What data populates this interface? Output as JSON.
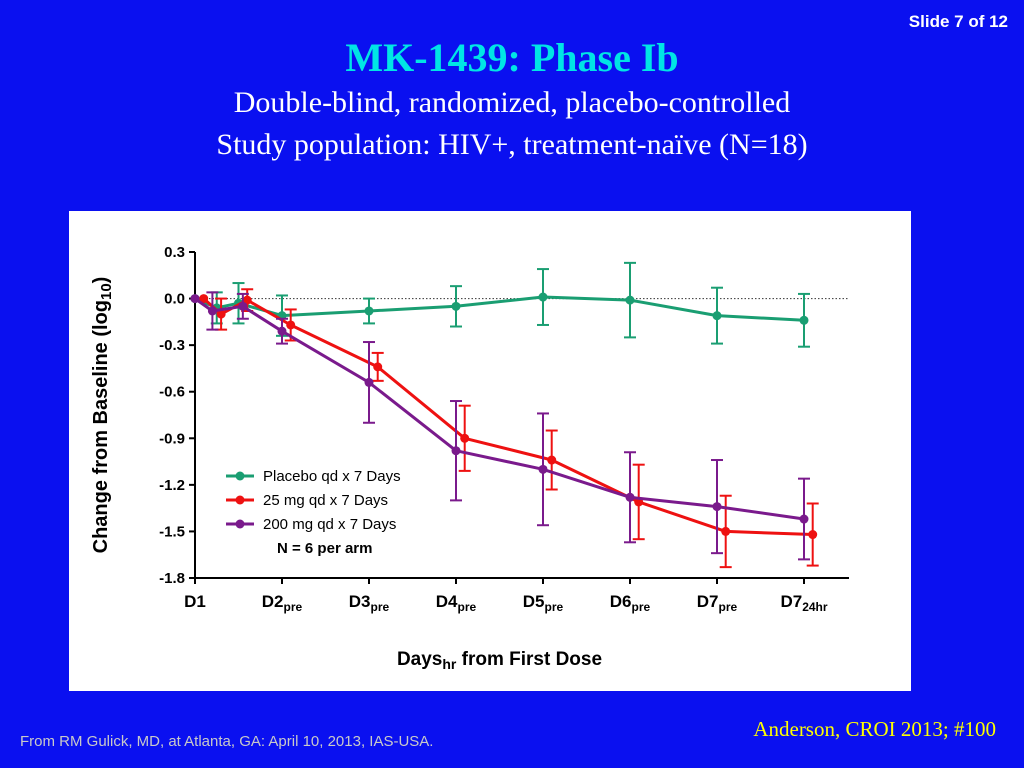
{
  "slide_number": "Slide 7 of 12",
  "title": "MK-1439:  Phase Ib",
  "subtitle_line1": "Double-blind, randomized, placebo-controlled",
  "subtitle_line2": "Study population: HIV+, treatment-naïve (N=18)",
  "source_note": "From RM Gulick, MD, at Atlanta, GA: April 10, 2013, IAS-USA.",
  "citation": "Anderson, CROI 2013; #100",
  "colors": {
    "background": "#0a10f0",
    "title": "#00e5e5",
    "citation": "#ffff00",
    "placebo": "#1a9e72",
    "mg25": "#ee1111",
    "mg200": "#7a1a8c"
  },
  "chart_data": {
    "type": "line",
    "ylabel": "Change from Baseline (log",
    "ylabel_sub": "10",
    "ylabel_end": ")",
    "xlabel": "Days",
    "xlabel_sub": "hr",
    "xlabel_end": " from First Dose",
    "ylim": [
      -1.8,
      0.3
    ],
    "yticks": [
      0.3,
      0.0,
      -0.3,
      -0.6,
      -0.9,
      -1.2,
      -1.5,
      -1.8
    ],
    "ytick_labels": [
      "0.3",
      "0.0",
      "-0.3",
      "-0.6",
      "-0.9",
      "-1.2",
      "-1.5",
      "-1.8"
    ],
    "reference_line": 0,
    "xlim": [
      0,
      7
    ],
    "xticks": [
      {
        "pos": 0,
        "main": "D1",
        "sub": ""
      },
      {
        "pos": 1,
        "main": "D2",
        "sub": "pre"
      },
      {
        "pos": 2,
        "main": "D3",
        "sub": "pre"
      },
      {
        "pos": 3,
        "main": "D4",
        "sub": "pre"
      },
      {
        "pos": 4,
        "main": "D5",
        "sub": "pre"
      },
      {
        "pos": 5,
        "main": "D6",
        "sub": "pre"
      },
      {
        "pos": 6,
        "main": "D7",
        "sub": "pre"
      },
      {
        "pos": 7,
        "main": "D7",
        "sub": "24hr"
      }
    ],
    "series": [
      {
        "name": "Placebo qd x 7 Days",
        "key": "placebo",
        "color": "#1a9e72",
        "points": [
          {
            "x": 0,
            "y": 0.0,
            "err": 0
          },
          {
            "x": 0.25,
            "y": -0.06,
            "err": 0.1
          },
          {
            "x": 0.5,
            "y": -0.03,
            "err": 0.13
          },
          {
            "x": 1,
            "y": -0.11,
            "err": 0.13
          },
          {
            "x": 2,
            "y": -0.08,
            "err": 0.08
          },
          {
            "x": 3,
            "y": -0.05,
            "err": 0.13
          },
          {
            "x": 4,
            "y": 0.01,
            "err": 0.18
          },
          {
            "x": 5,
            "y": -0.01,
            "err": 0.24
          },
          {
            "x": 6,
            "y": -0.11,
            "err": 0.18
          },
          {
            "x": 7,
            "y": -0.14,
            "err": 0.17
          }
        ]
      },
      {
        "name": "25 mg qd x 7 Days",
        "key": "mg25",
        "color": "#ee1111",
        "points": [
          {
            "x": 0.1,
            "y": 0.0,
            "err": 0
          },
          {
            "x": 0.3,
            "y": -0.1,
            "err": 0.1
          },
          {
            "x": 0.6,
            "y": -0.01,
            "err": 0.07
          },
          {
            "x": 1.1,
            "y": -0.17,
            "err": 0.1
          },
          {
            "x": 2.1,
            "y": -0.44,
            "err": 0.09
          },
          {
            "x": 3.1,
            "y": -0.9,
            "err": 0.21
          },
          {
            "x": 4.1,
            "y": -1.04,
            "err": 0.19
          },
          {
            "x": 5.1,
            "y": -1.31,
            "err": 0.24
          },
          {
            "x": 6.1,
            "y": -1.5,
            "err": 0.23
          },
          {
            "x": 7.1,
            "y": -1.52,
            "err": 0.2
          }
        ]
      },
      {
        "name": "200 mg qd x 7 Days",
        "key": "mg200",
        "color": "#7a1a8c",
        "points": [
          {
            "x": 0,
            "y": 0.0,
            "err": 0
          },
          {
            "x": 0.2,
            "y": -0.08,
            "err": 0.12
          },
          {
            "x": 0.55,
            "y": -0.05,
            "err": 0.08
          },
          {
            "x": 1,
            "y": -0.21,
            "err": 0.08
          },
          {
            "x": 2,
            "y": -0.54,
            "err": 0.26
          },
          {
            "x": 3,
            "y": -0.98,
            "err": 0.32
          },
          {
            "x": 4,
            "y": -1.1,
            "err": 0.36
          },
          {
            "x": 5,
            "y": -1.28,
            "err": 0.29
          },
          {
            "x": 6,
            "y": -1.34,
            "err": 0.3
          },
          {
            "x": 7,
            "y": -1.42,
            "err": 0.26
          }
        ]
      }
    ],
    "legend": {
      "placement": "lower-left",
      "entries": [
        "Placebo qd x 7 Days",
        "25 mg qd x 7 Days",
        "200 mg qd x 7 Days"
      ],
      "note": "N = 6 per arm"
    }
  }
}
